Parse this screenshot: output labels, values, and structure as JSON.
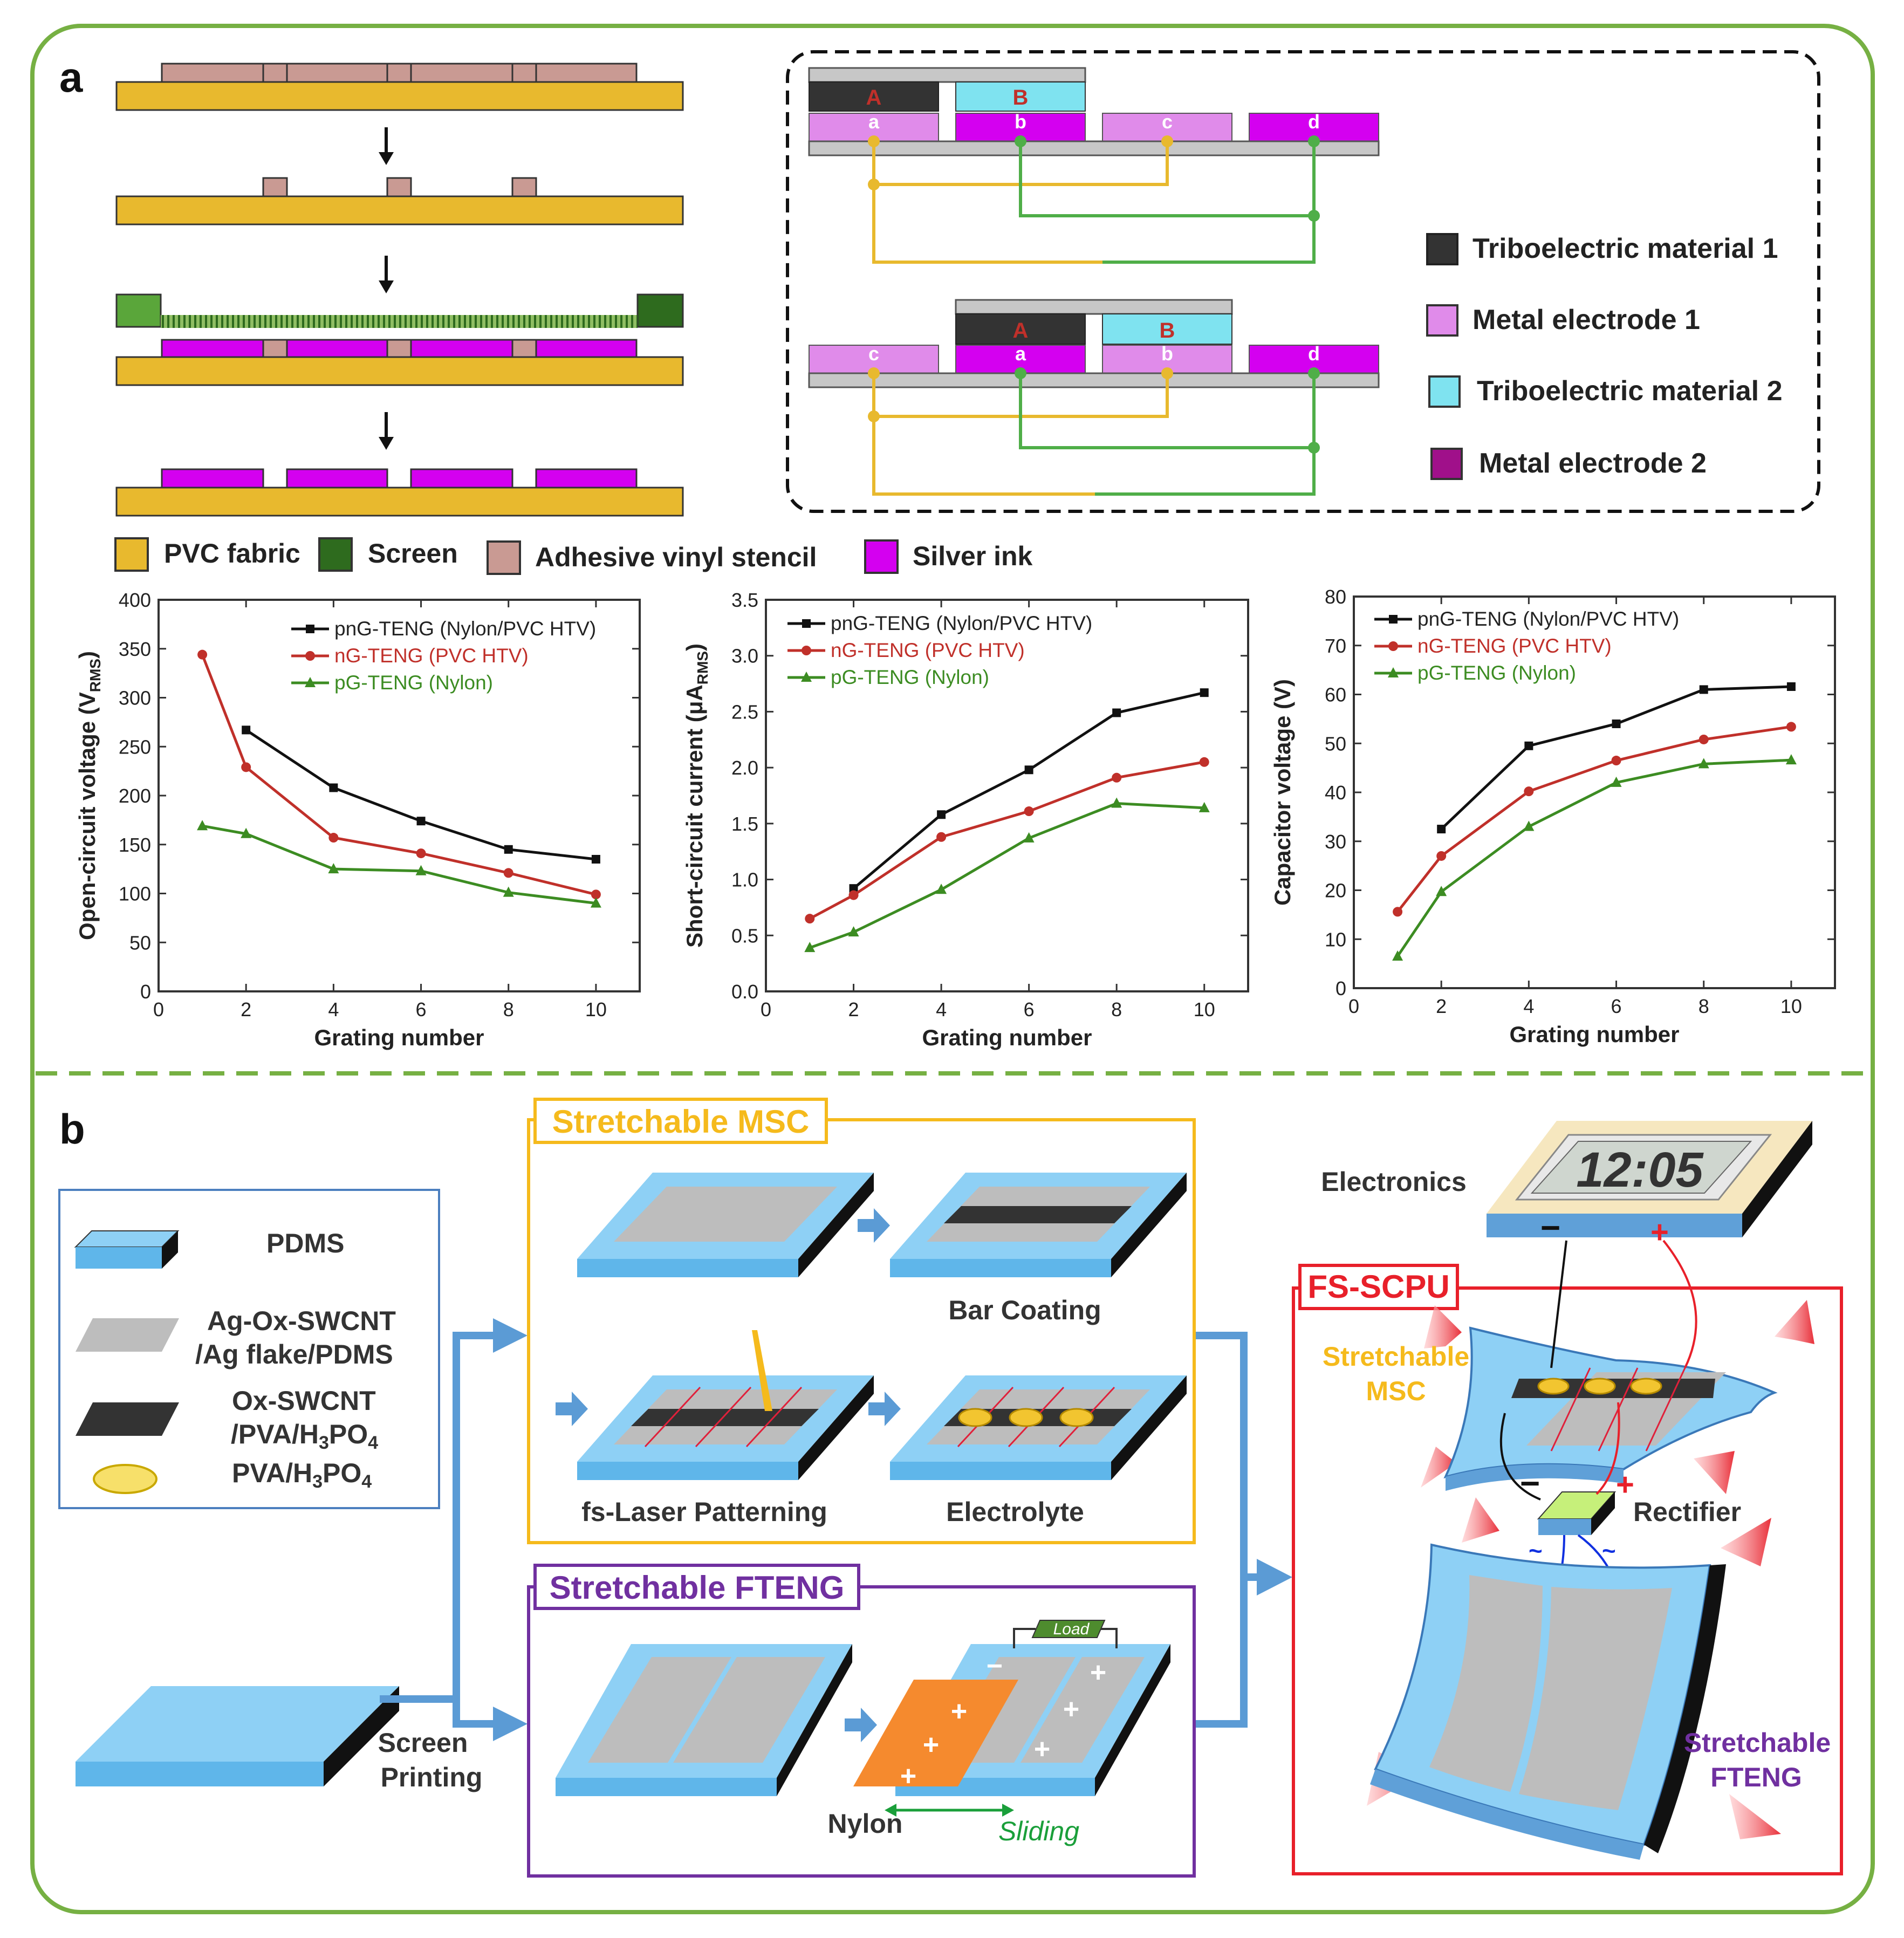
{
  "panel_a": {
    "label": "a",
    "legend_materials": [
      {
        "name": "PVC fabric",
        "color": "#E8B92E"
      },
      {
        "name": "Screen",
        "color": "#2E6B1E"
      },
      {
        "name": "Adhesive vinyl stencil",
        "color": "#C99A93"
      },
      {
        "name": "Silver ink",
        "color": "#D400F0"
      }
    ],
    "grating": {
      "top_labels": [
        "A",
        "B"
      ],
      "bottom_labels": [
        "a",
        "b",
        "c",
        "d"
      ],
      "row2_top_labels": [
        "A",
        "B"
      ],
      "row2_bottom_labels": [
        "c",
        "a",
        "b",
        "d"
      ]
    },
    "legend_right": [
      {
        "name": "Triboelectric material 1",
        "color": "#333333"
      },
      {
        "name": "Metal electrode 1",
        "color": "#E08BEA"
      },
      {
        "name": "Triboelectric material 2",
        "color": "#7FE3F0"
      },
      {
        "name": "Metal electrode 2",
        "color": "#A0108A"
      }
    ]
  },
  "chart_data": [
    {
      "type": "line",
      "xlabel": "Grating number",
      "ylabel": "Open-circuit voltage (V",
      "ylabel_sub": "RMS",
      "ylabel_end": ")",
      "xlim": [
        0,
        11
      ],
      "ylim": [
        0,
        400
      ],
      "xticks": [
        0,
        2,
        4,
        6,
        8,
        10
      ],
      "yticks": [
        0,
        50,
        100,
        150,
        200,
        250,
        300,
        350,
        400
      ],
      "legend_position": "top-right",
      "series": [
        {
          "name": "pnG-TENG (Nylon/PVC HTV)",
          "color": "#111111",
          "marker": "square",
          "x": [
            2,
            4,
            6,
            8,
            10
          ],
          "values": [
            267,
            208,
            174,
            145,
            135
          ]
        },
        {
          "name": "nG-TENG (PVC HTV)",
          "color": "#C0302A",
          "marker": "circle",
          "x": [
            1,
            2,
            4,
            6,
            8,
            10
          ],
          "values": [
            344,
            229,
            157,
            141,
            121,
            99
          ]
        },
        {
          "name": "pG-TENG (Nylon)",
          "color": "#3C8C22",
          "marker": "triangle",
          "x": [
            1,
            2,
            4,
            6,
            8,
            10
          ],
          "values": [
            169,
            161,
            125,
            123,
            101,
            90
          ]
        }
      ]
    },
    {
      "type": "line",
      "xlabel": "Grating number",
      "ylabel": "Short-circuit current (μA",
      "ylabel_sub": "RMS",
      "ylabel_end": ")",
      "xlim": [
        0,
        11
      ],
      "ylim": [
        0.0,
        3.5
      ],
      "xticks": [
        0,
        2,
        4,
        6,
        8,
        10
      ],
      "yticks": [
        "0.0",
        "0.5",
        "1.0",
        "1.5",
        "2.0",
        "2.5",
        "3.0",
        "3.5"
      ],
      "legend_position": "top-left",
      "series": [
        {
          "name": "pnG-TENG (Nylon/PVC HTV)",
          "color": "#111111",
          "marker": "square",
          "x": [
            2,
            4,
            6,
            8,
            10
          ],
          "values": [
            0.92,
            1.58,
            1.98,
            2.49,
            2.67
          ]
        },
        {
          "name": "nG-TENG (PVC HTV)",
          "color": "#C0302A",
          "marker": "circle",
          "x": [
            1,
            2,
            4,
            6,
            8,
            10
          ],
          "values": [
            0.65,
            0.86,
            1.38,
            1.61,
            1.91,
            2.05
          ]
        },
        {
          "name": "pG-TENG (Nylon)",
          "color": "#3C8C22",
          "marker": "triangle",
          "x": [
            1,
            2,
            4,
            6,
            8,
            10
          ],
          "values": [
            0.39,
            0.53,
            0.91,
            1.37,
            1.68,
            1.64
          ]
        }
      ]
    },
    {
      "type": "line",
      "xlabel": "Grating number",
      "ylabel": "Capacitor voltage (V)",
      "ylabel_sub": "",
      "ylabel_end": "",
      "xlim": [
        0,
        11
      ],
      "ylim": [
        0,
        80
      ],
      "xticks": [
        0,
        2,
        4,
        6,
        8,
        10
      ],
      "yticks": [
        0,
        10,
        20,
        30,
        40,
        50,
        60,
        70,
        80
      ],
      "legend_position": "top-left",
      "series": [
        {
          "name": "pnG-TENG (Nylon/PVC HTV)",
          "color": "#111111",
          "marker": "square",
          "x": [
            2,
            4,
            6,
            8,
            10
          ],
          "values": [
            32.5,
            49.5,
            54.0,
            61.0,
            61.6
          ]
        },
        {
          "name": "nG-TENG (PVC HTV)",
          "color": "#C0302A",
          "marker": "circle",
          "x": [
            1,
            2,
            4,
            6,
            8,
            10
          ],
          "values": [
            15.6,
            27.0,
            40.2,
            46.5,
            50.8,
            53.4
          ]
        },
        {
          "name": "pG-TENG (Nylon)",
          "color": "#3C8C22",
          "marker": "triangle",
          "x": [
            1,
            2,
            4,
            6,
            8,
            10
          ],
          "values": [
            6.5,
            19.7,
            33.0,
            42.0,
            45.8,
            46.6
          ]
        }
      ]
    }
  ],
  "panel_b": {
    "label": "b",
    "legend": [
      {
        "name": "PDMS"
      },
      {
        "name_line1": "Ag-Ox-SWCNT",
        "name_line2": "/Ag flake/PDMS"
      },
      {
        "name_line1": "Ox-SWCNT",
        "name_line2": "/PVA/H",
        "sub_a": "3",
        "mid": "PO",
        "sub_b": "4"
      },
      {
        "name": "PVA/H",
        "sub_a": "3",
        "mid": "PO",
        "sub_b": "4"
      }
    ],
    "screen_printing": "Screen",
    "screen_printing_2": "Printing",
    "msc_box": {
      "title": "Stretchable  MSC",
      "steps": [
        "Bar Coating",
        "fs-Laser Patterning",
        "Electrolyte"
      ]
    },
    "fteng_box": {
      "title": "Stretchable  FTENG",
      "load": "Load",
      "nylon": "Nylon",
      "sliding": "Sliding"
    },
    "scpu_box": {
      "title": "FS-SCPU",
      "electronics": "Electronics",
      "clock": "12:05",
      "msc": "Stretchable",
      "msc2": "MSC",
      "rectifier": "Rectifier",
      "fteng": "Stretchable",
      "fteng2": "FTENG",
      "minus": "−",
      "plus": "+"
    }
  }
}
